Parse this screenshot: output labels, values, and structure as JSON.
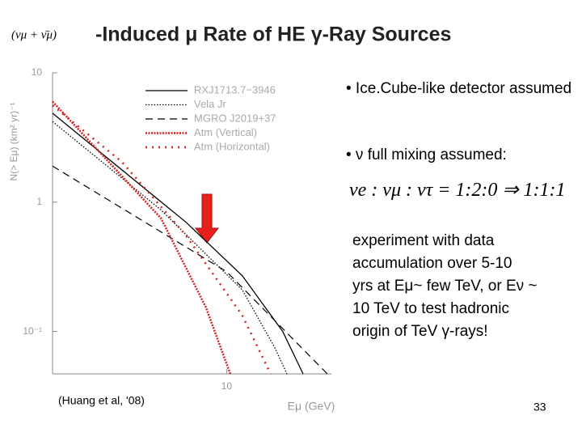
{
  "title_prefix": "(νμ + ν̄μ)",
  "title": "-Induced μ Rate of HE γ-Ray Sources",
  "bullets": [
    "• Ice.Cube-like detector assumed",
    "• ν full mixing assumed:"
  ],
  "equation": "νe : νμ : ντ = 1:2:0 ⇒ 1:1:1",
  "paragraph": [
    "experiment with data",
    "accumulation over 5-10",
    "yrs at Eμ~ few TeV, or Eν ~",
    "10 TeV to test hadronic",
    "origin of TeV γ-rays!"
  ],
  "credit": "(Huang et al, '08)",
  "page_number": "33",
  "chart_data": {
    "type": "line",
    "x_label": "Eμ (GeV)",
    "y_label": "N(> Eμ) (km² yr)⁻¹",
    "xlog": true,
    "ylog": true,
    "xlim": [
      1,
      40
    ],
    "ylim": [
      0.047,
      10
    ],
    "xticks": [
      10
    ],
    "yticks": [
      10,
      1,
      {
        "value": 0.1,
        "label": "10⁻¹"
      }
    ],
    "series": [
      {
        "name": "RXJ1713.7−3946",
        "color": "#000000",
        "dash": "solid",
        "x": [
          1,
          5.84,
          12.3,
          21,
          27.5
        ],
        "values": [
          4.87,
          0.7,
          0.27,
          0.1,
          0.047
        ]
      },
      {
        "name": "Vela Jr",
        "color": "#000000",
        "dash": "dotted",
        "x": [
          1,
          4.2,
          12.3,
          18.9,
          22.2
        ],
        "values": [
          4.2,
          0.87,
          0.21,
          0.075,
          0.047
        ]
      },
      {
        "name": "MGRO J2019+37",
        "color": "#000000",
        "dash": "dashed",
        "x": [
          1,
          10,
          37.9
        ],
        "values": [
          1.9,
          0.29,
          0.047
        ]
      },
      {
        "name": "Atm (Vertical)",
        "color": "#d42020",
        "dash": "dense",
        "x": [
          1,
          2,
          4.2,
          7.6,
          10.5
        ],
        "values": [
          6,
          2.2,
          0.75,
          0.154,
          0.047
        ]
      },
      {
        "name": "Atm (Horizontal)",
        "color": "#d42020",
        "dash": "sparse",
        "x": [
          1,
          2.5,
          5.8,
          12.3,
          17.9
        ],
        "values": [
          5.6,
          2.05,
          0.56,
          0.133,
          0.047
        ]
      }
    ]
  }
}
